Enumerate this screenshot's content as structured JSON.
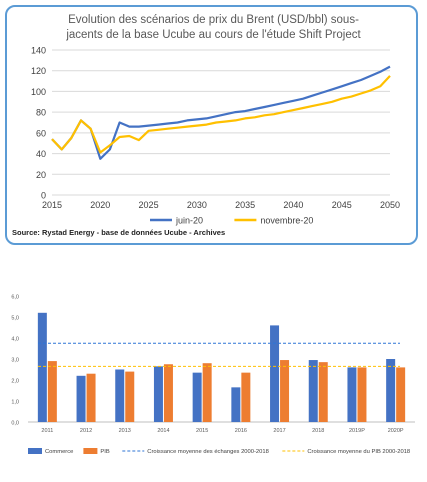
{
  "chart_data": [
    {
      "type": "line",
      "title_lines": [
        "Evolution des scénarios de prix du Brent (USD/bbl) sous-",
        "jacents de la base Ucube au cours de l'étude Shift Project"
      ],
      "source": "Source: Rystad Energy - base de données Ucube - Archives",
      "x": [
        2015,
        2016,
        2017,
        2018,
        2019,
        2020,
        2021,
        2022,
        2023,
        2024,
        2025,
        2026,
        2027,
        2028,
        2029,
        2030,
        2031,
        2032,
        2033,
        2034,
        2035,
        2036,
        2037,
        2038,
        2039,
        2040,
        2041,
        2042,
        2043,
        2044,
        2045,
        2046,
        2047,
        2048,
        2049,
        2050
      ],
      "series": [
        {
          "name": "juin-20",
          "color": "#4472c4",
          "values": [
            54,
            44,
            55,
            72,
            64,
            35,
            44,
            70,
            66,
            66,
            67,
            68,
            69,
            70,
            72,
            73,
            74,
            76,
            78,
            80,
            81,
            83,
            85,
            87,
            89,
            91,
            93,
            96,
            99,
            102,
            105,
            108,
            111,
            115,
            119,
            124
          ]
        },
        {
          "name": "novembre-20",
          "color": "#ffc000",
          "values": [
            54,
            44,
            55,
            72,
            64,
            41,
            48,
            56,
            57,
            53,
            62,
            63,
            64,
            65,
            66,
            67,
            68,
            70,
            71,
            72,
            74,
            75,
            77,
            78,
            80,
            82,
            84,
            86,
            88,
            90,
            93,
            95,
            98,
            101,
            105,
            115
          ]
        }
      ],
      "xticks": [
        "2015",
        "2020",
        "2025",
        "2030",
        "2035",
        "2040",
        "2045",
        "2050"
      ],
      "yticks": [
        "0",
        "20",
        "40",
        "60",
        "80",
        "100",
        "120",
        "140"
      ],
      "xlim": [
        2015,
        2050
      ],
      "ylim": [
        0,
        140
      ],
      "grid": true,
      "legend_position": "bottom"
    },
    {
      "type": "bar",
      "categories": [
        "2011",
        "2012",
        "2013",
        "2014",
        "2015",
        "2016",
        "2017",
        "2018",
        "2019P",
        "2020P"
      ],
      "series": [
        {
          "name": "Commerce",
          "color": "#4472c4",
          "values": [
            5.2,
            2.2,
            2.5,
            2.65,
            2.35,
            1.65,
            4.6,
            2.95,
            2.6,
            3.0
          ]
        },
        {
          "name": "PIB",
          "color": "#ed7d31",
          "values": [
            2.9,
            2.3,
            2.4,
            2.75,
            2.8,
            2.35,
            2.95,
            2.85,
            2.6,
            2.6
          ]
        }
      ],
      "reference_lines": [
        {
          "name": "Croissance moyenne des échanges 2000-2018",
          "value": 3.75,
          "color": "#2e75d6"
        },
        {
          "name": "Croissance moyenne du PIB 2000-2018",
          "value": 2.65,
          "color": "#ffc000"
        }
      ],
      "yticks": [
        "0,0",
        "1,0",
        "2,0",
        "3,0",
        "4,0",
        "5,0",
        "6,0"
      ],
      "ylim": [
        0,
        6
      ],
      "grid": false,
      "legend_position": "bottom"
    }
  ]
}
